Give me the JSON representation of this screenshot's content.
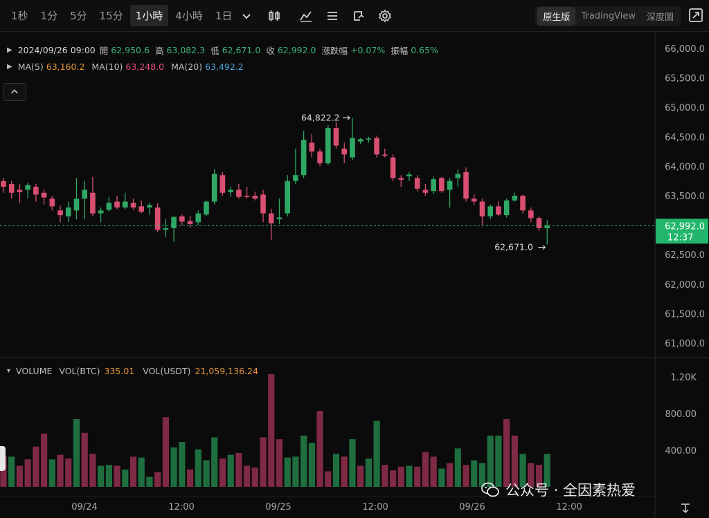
{
  "toolbar": {
    "timeframes": [
      "1秒",
      "1分",
      "5分",
      "15分",
      "1小時",
      "4小時",
      "1日"
    ],
    "active_timeframe": "1小時",
    "modes": [
      "原生版",
      "TradingView",
      "深度圖"
    ],
    "active_mode": "原生版",
    "icons": [
      "chevron-down-icon",
      "candle-type-icon",
      "indicator-icon",
      "list-icon",
      "replay-icon",
      "settings-icon",
      "fullscreen-icon"
    ]
  },
  "ohlc": {
    "datetime": "2024/09/26 09:00",
    "open_label": "開",
    "open": "62,950.6",
    "high_label": "高",
    "high": "63,082.3",
    "low_label": "低",
    "low": "62,671.0",
    "close_label": "收",
    "close": "62,992.0",
    "change_label": "漲跌幅",
    "change": "+0.07%",
    "amp_label": "振幅",
    "amp": "0.65%"
  },
  "ma": {
    "ma5_label": "MA(5)",
    "ma5": "63,160.2",
    "ma10_label": "MA(10)",
    "ma10": "63,248.0",
    "ma20_label": "MA(20)",
    "ma20": "63,492.2"
  },
  "volume_legend": {
    "title": "VOLUME",
    "btc_label": "VOL(BTC)",
    "btc": "335.01",
    "usdt_label": "VOL(USDT)",
    "usdt": "21,059,136.24"
  },
  "watermark": "公众号 · 全因素热爱",
  "colors": {
    "up": "#2fa866",
    "down": "#d94f72",
    "vol_up": "#1f6e3f",
    "vol_down": "#7f2a44",
    "current": "#22b66a",
    "bg": "#0b0b0b"
  },
  "chart_data": {
    "type": "candlestick",
    "price_axis": {
      "ticks": [
        "66,000.0",
        "65,500.0",
        "65,000.0",
        "64,500.0",
        "64,000.0",
        "63,500.0",
        "63,000.0",
        "62,500.0",
        "62,000.0",
        "61,500.0",
        "61,000.0"
      ],
      "range": [
        60850,
        66150
      ]
    },
    "volume_axis": {
      "ticks": [
        "1.20K",
        "800.00",
        "400.00"
      ],
      "range": [
        0,
        1300
      ]
    },
    "x_ticks": [
      "09/24",
      "12:00",
      "09/25",
      "12:00",
      "09/26",
      "12:00"
    ],
    "current_price": "62,992.0",
    "countdown": "12:37",
    "high_marker": "64,822.2",
    "low_marker": "62,671.0",
    "candles": [
      {
        "o": 63750,
        "h": 63800,
        "l": 63550,
        "c": 63650
      },
      {
        "o": 63700,
        "h": 63750,
        "l": 63450,
        "c": 63550
      },
      {
        "o": 63600,
        "h": 63700,
        "l": 63380,
        "c": 63560
      },
      {
        "o": 63600,
        "h": 63720,
        "l": 63460,
        "c": 63680
      },
      {
        "o": 63650,
        "h": 63700,
        "l": 63400,
        "c": 63520
      },
      {
        "o": 63550,
        "h": 63600,
        "l": 63350,
        "c": 63470
      },
      {
        "o": 63450,
        "h": 63500,
        "l": 63250,
        "c": 63320
      },
      {
        "o": 63250,
        "h": 63330,
        "l": 63050,
        "c": 63170
      },
      {
        "o": 63150,
        "h": 63400,
        "l": 63050,
        "c": 63300
      },
      {
        "o": 63250,
        "h": 63800,
        "l": 63100,
        "c": 63450
      },
      {
        "o": 63450,
        "h": 63750,
        "l": 63100,
        "c": 63600
      },
      {
        "o": 63550,
        "h": 63820,
        "l": 63150,
        "c": 63200
      },
      {
        "o": 63200,
        "h": 63300,
        "l": 63050,
        "c": 63250
      },
      {
        "o": 63260,
        "h": 63480,
        "l": 63230,
        "c": 63380
      },
      {
        "o": 63400,
        "h": 63500,
        "l": 63270,
        "c": 63300
      },
      {
        "o": 63300,
        "h": 63550,
        "l": 63270,
        "c": 63400
      },
      {
        "o": 63380,
        "h": 63450,
        "l": 63260,
        "c": 63300
      },
      {
        "o": 63320,
        "h": 63420,
        "l": 63200,
        "c": 63230
      },
      {
        "o": 63300,
        "h": 63380,
        "l": 63180,
        "c": 63340
      },
      {
        "o": 63300,
        "h": 63370,
        "l": 62880,
        "c": 62920
      },
      {
        "o": 62920,
        "h": 63100,
        "l": 62800,
        "c": 62950
      },
      {
        "o": 62950,
        "h": 63150,
        "l": 62720,
        "c": 63140
      },
      {
        "o": 63150,
        "h": 63180,
        "l": 63000,
        "c": 63060
      },
      {
        "o": 63070,
        "h": 63160,
        "l": 62950,
        "c": 63020
      },
      {
        "o": 63050,
        "h": 63250,
        "l": 63000,
        "c": 63200
      },
      {
        "o": 63180,
        "h": 63420,
        "l": 63160,
        "c": 63400
      },
      {
        "o": 63400,
        "h": 63950,
        "l": 63350,
        "c": 63870
      },
      {
        "o": 63850,
        "h": 63900,
        "l": 63500,
        "c": 63550
      },
      {
        "o": 63560,
        "h": 63650,
        "l": 63480,
        "c": 63600
      },
      {
        "o": 63600,
        "h": 63700,
        "l": 63450,
        "c": 63480
      },
      {
        "o": 63500,
        "h": 63650,
        "l": 63450,
        "c": 63480
      },
      {
        "o": 63500,
        "h": 63570,
        "l": 63420,
        "c": 63450
      },
      {
        "o": 63520,
        "h": 63600,
        "l": 63050,
        "c": 63200
      },
      {
        "o": 63200,
        "h": 63280,
        "l": 62750,
        "c": 63030
      },
      {
        "o": 63100,
        "h": 63450,
        "l": 63020,
        "c": 63130
      },
      {
        "o": 63200,
        "h": 63850,
        "l": 63150,
        "c": 63750
      },
      {
        "o": 63750,
        "h": 64300,
        "l": 63700,
        "c": 63850
      },
      {
        "o": 63850,
        "h": 64600,
        "l": 63800,
        "c": 64450
      },
      {
        "o": 64400,
        "h": 64550,
        "l": 64150,
        "c": 64250
      },
      {
        "o": 64250,
        "h": 64300,
        "l": 64000,
        "c": 64050
      },
      {
        "o": 64050,
        "h": 64700,
        "l": 64020,
        "c": 64650
      },
      {
        "o": 64650,
        "h": 64750,
        "l": 64300,
        "c": 64350
      },
      {
        "o": 64300,
        "h": 64400,
        "l": 64050,
        "c": 64200
      },
      {
        "o": 64150,
        "h": 64822,
        "l": 64100,
        "c": 64480
      },
      {
        "o": 64420,
        "h": 64480,
        "l": 64380,
        "c": 64460
      },
      {
        "o": 64460,
        "h": 64500,
        "l": 64400,
        "c": 64470
      },
      {
        "o": 64480,
        "h": 64520,
        "l": 64150,
        "c": 64200
      },
      {
        "o": 64200,
        "h": 64300,
        "l": 64150,
        "c": 64180
      },
      {
        "o": 64150,
        "h": 64200,
        "l": 63750,
        "c": 63800
      },
      {
        "o": 63800,
        "h": 63850,
        "l": 63650,
        "c": 63770
      },
      {
        "o": 63830,
        "h": 63900,
        "l": 63750,
        "c": 63860
      },
      {
        "o": 63800,
        "h": 63850,
        "l": 63570,
        "c": 63620
      },
      {
        "o": 63600,
        "h": 63700,
        "l": 63500,
        "c": 63550
      },
      {
        "o": 63580,
        "h": 63820,
        "l": 63530,
        "c": 63780
      },
      {
        "o": 63800,
        "h": 63820,
        "l": 63550,
        "c": 63580
      },
      {
        "o": 63600,
        "h": 63800,
        "l": 63300,
        "c": 63750
      },
      {
        "o": 63800,
        "h": 63950,
        "l": 63650,
        "c": 63870
      },
      {
        "o": 63900,
        "h": 63980,
        "l": 63400,
        "c": 63450
      },
      {
        "o": 63450,
        "h": 63530,
        "l": 63350,
        "c": 63400
      },
      {
        "o": 63400,
        "h": 63450,
        "l": 63000,
        "c": 63150
      },
      {
        "o": 63150,
        "h": 63350,
        "l": 63100,
        "c": 63320
      },
      {
        "o": 63320,
        "h": 63400,
        "l": 63150,
        "c": 63180
      },
      {
        "o": 63170,
        "h": 63450,
        "l": 63130,
        "c": 63420
      },
      {
        "o": 63420,
        "h": 63550,
        "l": 63400,
        "c": 63500
      },
      {
        "o": 63500,
        "h": 63520,
        "l": 63200,
        "c": 63250
      },
      {
        "o": 63250,
        "h": 63300,
        "l": 63050,
        "c": 63120
      },
      {
        "o": 63120,
        "h": 63150,
        "l": 62900,
        "c": 62950
      },
      {
        "o": 62950,
        "h": 63082,
        "l": 62671,
        "c": 62992
      }
    ],
    "volumes": [
      {
        "v": 330,
        "up": false
      },
      {
        "v": 330,
        "up": true
      },
      {
        "v": 230,
        "up": false
      },
      {
        "v": 300,
        "up": false
      },
      {
        "v": 440,
        "up": false
      },
      {
        "v": 580,
        "up": false
      },
      {
        "v": 300,
        "up": true
      },
      {
        "v": 350,
        "up": false
      },
      {
        "v": 310,
        "up": false
      },
      {
        "v": 740,
        "up": true
      },
      {
        "v": 590,
        "up": false
      },
      {
        "v": 360,
        "up": false
      },
      {
        "v": 230,
        "up": true
      },
      {
        "v": 240,
        "up": true
      },
      {
        "v": 230,
        "up": false
      },
      {
        "v": 190,
        "up": true
      },
      {
        "v": 330,
        "up": false
      },
      {
        "v": 320,
        "up": true
      },
      {
        "v": 110,
        "up": true
      },
      {
        "v": 160,
        "up": false
      },
      {
        "v": 760,
        "up": false
      },
      {
        "v": 430,
        "up": true
      },
      {
        "v": 490,
        "up": true
      },
      {
        "v": 190,
        "up": false
      },
      {
        "v": 410,
        "up": true
      },
      {
        "v": 290,
        "up": true
      },
      {
        "v": 540,
        "up": true
      },
      {
        "v": 310,
        "up": false
      },
      {
        "v": 350,
        "up": true
      },
      {
        "v": 370,
        "up": false
      },
      {
        "v": 230,
        "up": false
      },
      {
        "v": 210,
        "up": false
      },
      {
        "v": 540,
        "up": false
      },
      {
        "v": 1230,
        "up": false
      },
      {
        "v": 520,
        "up": false
      },
      {
        "v": 320,
        "up": true
      },
      {
        "v": 330,
        "up": true
      },
      {
        "v": 560,
        "up": true
      },
      {
        "v": 480,
        "up": true
      },
      {
        "v": 830,
        "up": false
      },
      {
        "v": 170,
        "up": false
      },
      {
        "v": 360,
        "up": true
      },
      {
        "v": 330,
        "up": false
      },
      {
        "v": 520,
        "up": true
      },
      {
        "v": 230,
        "up": false
      },
      {
        "v": 310,
        "up": true
      },
      {
        "v": 720,
        "up": true
      },
      {
        "v": 240,
        "up": false
      },
      {
        "v": 180,
        "up": false
      },
      {
        "v": 220,
        "up": false
      },
      {
        "v": 230,
        "up": true
      },
      {
        "v": 220,
        "up": false
      },
      {
        "v": 380,
        "up": false
      },
      {
        "v": 330,
        "up": false
      },
      {
        "v": 200,
        "up": true
      },
      {
        "v": 260,
        "up": false
      },
      {
        "v": 420,
        "up": true
      },
      {
        "v": 240,
        "up": false
      },
      {
        "v": 290,
        "up": true
      },
      {
        "v": 260,
        "up": true
      },
      {
        "v": 560,
        "up": true
      },
      {
        "v": 560,
        "up": true
      },
      {
        "v": 740,
        "up": false
      },
      {
        "v": 560,
        "up": false
      },
      {
        "v": 360,
        "up": true
      },
      {
        "v": 260,
        "up": false
      },
      {
        "v": 240,
        "up": false
      },
      {
        "v": 360,
        "up": true
      }
    ]
  }
}
